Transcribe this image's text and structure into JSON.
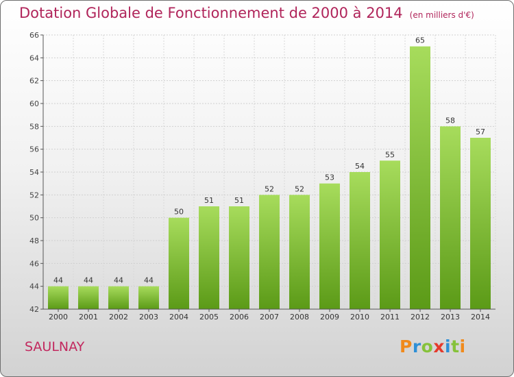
{
  "chart_data": {
    "type": "bar",
    "title": "Dotation Globale de Fonctionnement de 2000 à 2014",
    "subtitle": "(en milliers d'€)",
    "categories": [
      "2000",
      "2001",
      "2002",
      "2003",
      "2004",
      "2005",
      "2006",
      "2007",
      "2008",
      "2009",
      "2010",
      "2011",
      "2012",
      "2013",
      "2014"
    ],
    "values": [
      44,
      44,
      44,
      44,
      50,
      51,
      51,
      52,
      52,
      53,
      54,
      55,
      65,
      58,
      57
    ],
    "ylim": [
      42,
      66
    ],
    "yticks": [
      42,
      44,
      46,
      48,
      50,
      52,
      54,
      56,
      58,
      60,
      62,
      64,
      66
    ],
    "grid": true,
    "bar_color": "#7cc436"
  },
  "footer": {
    "place": "SAULNAY",
    "logo": "Proxiti"
  },
  "colors": {
    "title": "#b0245a",
    "bar_top": "#a7dc5c",
    "bar_bottom": "#5b9a17"
  }
}
